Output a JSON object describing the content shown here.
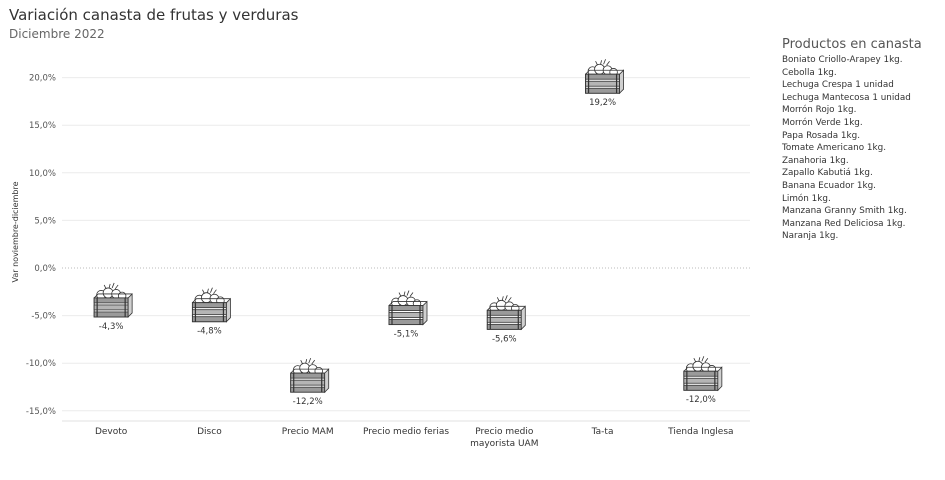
{
  "title": "Variación canasta de frutas y verduras",
  "subtitle": "Diciembre 2022",
  "legend": {
    "title": "Productos en canasta",
    "items": [
      "Boniato Criollo-Arapey 1kg.",
      "Cebolla  1kg.",
      "Lechuga Crespa  1 unidad",
      "Lechuga Mantecosa  1 unidad",
      "Morrón Rojo  1kg.",
      "Morrón Verde  1kg.",
      "Papa Rosada  1kg.",
      "Tomate Americano  1kg.",
      "Zanahoria  1kg.",
      "Zapallo Kabutiá  1kg.",
      "Banana Ecuador  1kg.",
      "Limón  1kg.",
      "Manzana Granny Smith  1kg.",
      "Manzana Red Deliciosa  1kg.",
      "Naranja  1kg."
    ]
  },
  "chart_data": {
    "type": "scatter",
    "marker": "produce-crate-icon",
    "ylabel": "Var noviembre-diciembre",
    "xlabel": "",
    "ylim": [
      -16,
      22
    ],
    "yticks": [
      20,
      15,
      10,
      5,
      0,
      -5,
      -10,
      -15
    ],
    "ytick_labels": [
      "20,0%",
      "15,0%",
      "10,0%",
      "5,0%",
      "0,0%",
      "-5,0%",
      "-10,0%",
      "-15,0%"
    ],
    "grid": true,
    "zero_line": "dotted",
    "categories": [
      [
        "Devoto"
      ],
      [
        "Disco"
      ],
      [
        "Precio MAM"
      ],
      [
        "Precio medio ferias"
      ],
      [
        "Precio medio",
        "mayorista UAM"
      ],
      [
        "Ta-ta"
      ],
      [
        "Tienda Inglesa"
      ]
    ],
    "values": [
      -4.3,
      -4.8,
      -12.2,
      -5.1,
      -5.6,
      19.2,
      -12.0
    ],
    "data_labels": [
      "-4,3%",
      "-4,8%",
      "-12,2%",
      "-5,1%",
      "-5,6%",
      "19,2%",
      "-12,0%"
    ]
  }
}
